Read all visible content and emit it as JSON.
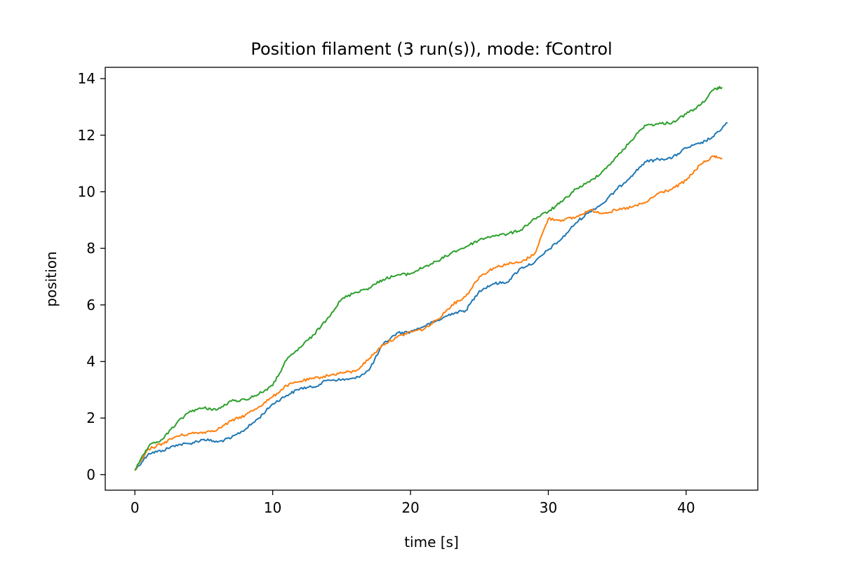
{
  "chart_data": {
    "type": "line",
    "title": "Position filament (3 run(s)), mode: fControl",
    "xlabel": "time [s]",
    "ylabel": "position",
    "xlim": [
      -2.15,
      45.2
    ],
    "ylim": [
      -0.55,
      14.4
    ],
    "xticks": [
      0,
      10,
      20,
      30,
      40
    ],
    "yticks": [
      0,
      2,
      4,
      6,
      8,
      10,
      12,
      14
    ],
    "grid": false,
    "legend": "none",
    "series": [
      {
        "color": "#1f77b4",
        "x": [
          0,
          1,
          2,
          3,
          4,
          5,
          6,
          7,
          8,
          9,
          10,
          11,
          12,
          13,
          14,
          15,
          16,
          17,
          18,
          19,
          20,
          21,
          22,
          23,
          24,
          25,
          26,
          27,
          28,
          29,
          30,
          31,
          32,
          33,
          34,
          35,
          36,
          37,
          38,
          39,
          40,
          41,
          42,
          43
        ],
        "y": [
          0.15,
          0.75,
          0.85,
          1.05,
          1.1,
          1.25,
          1.15,
          1.3,
          1.6,
          2.0,
          2.5,
          2.8,
          3.05,
          3.1,
          3.35,
          3.35,
          3.4,
          3.7,
          4.6,
          5.0,
          5.05,
          5.25,
          5.45,
          5.7,
          5.8,
          6.5,
          6.75,
          6.8,
          7.3,
          7.5,
          7.95,
          8.35,
          8.9,
          9.3,
          9.6,
          10.1,
          10.55,
          11.05,
          11.15,
          11.2,
          11.55,
          11.7,
          11.95,
          12.45
        ]
      },
      {
        "color": "#ff7f0e",
        "x": [
          0,
          1,
          2,
          3,
          4,
          5,
          6,
          7,
          8,
          9,
          10,
          11,
          12,
          13,
          14,
          15,
          16,
          17,
          18,
          19,
          20,
          21,
          22,
          23,
          24,
          25,
          26,
          27,
          28,
          29,
          30,
          31,
          32,
          33,
          34,
          35,
          36,
          37,
          38,
          39,
          40,
          41,
          42,
          42.6
        ],
        "y": [
          0.15,
          0.9,
          1.1,
          1.35,
          1.45,
          1.5,
          1.6,
          1.9,
          2.1,
          2.4,
          2.75,
          3.15,
          3.3,
          3.4,
          3.5,
          3.6,
          3.65,
          4.1,
          4.6,
          4.85,
          5.05,
          5.15,
          5.5,
          6.0,
          6.3,
          7.0,
          7.3,
          7.45,
          7.5,
          7.8,
          9.05,
          9.0,
          9.1,
          9.35,
          9.25,
          9.35,
          9.45,
          9.6,
          9.95,
          10.1,
          10.4,
          10.95,
          11.25,
          11.2
        ]
      },
      {
        "color": "#2ca02c",
        "x": [
          0,
          1,
          2,
          3,
          4,
          5,
          6,
          7,
          8,
          9,
          10,
          11,
          12,
          13,
          14,
          15,
          16,
          17,
          18,
          19,
          20,
          21,
          22,
          23,
          24,
          25,
          26,
          27,
          28,
          29,
          30,
          31,
          32,
          33,
          34,
          35,
          36,
          37,
          38,
          39,
          40,
          41,
          42,
          42.6
        ],
        "y": [
          0.15,
          1.0,
          1.25,
          1.8,
          2.25,
          2.35,
          2.3,
          2.6,
          2.65,
          2.85,
          3.15,
          4.05,
          4.5,
          4.95,
          5.55,
          6.2,
          6.45,
          6.6,
          6.9,
          7.05,
          7.1,
          7.35,
          7.55,
          7.85,
          8.05,
          8.3,
          8.45,
          8.5,
          8.65,
          9.05,
          9.3,
          9.65,
          10.1,
          10.35,
          10.75,
          11.25,
          11.8,
          12.35,
          12.4,
          12.45,
          12.75,
          13.05,
          13.6,
          13.7
        ]
      }
    ]
  }
}
